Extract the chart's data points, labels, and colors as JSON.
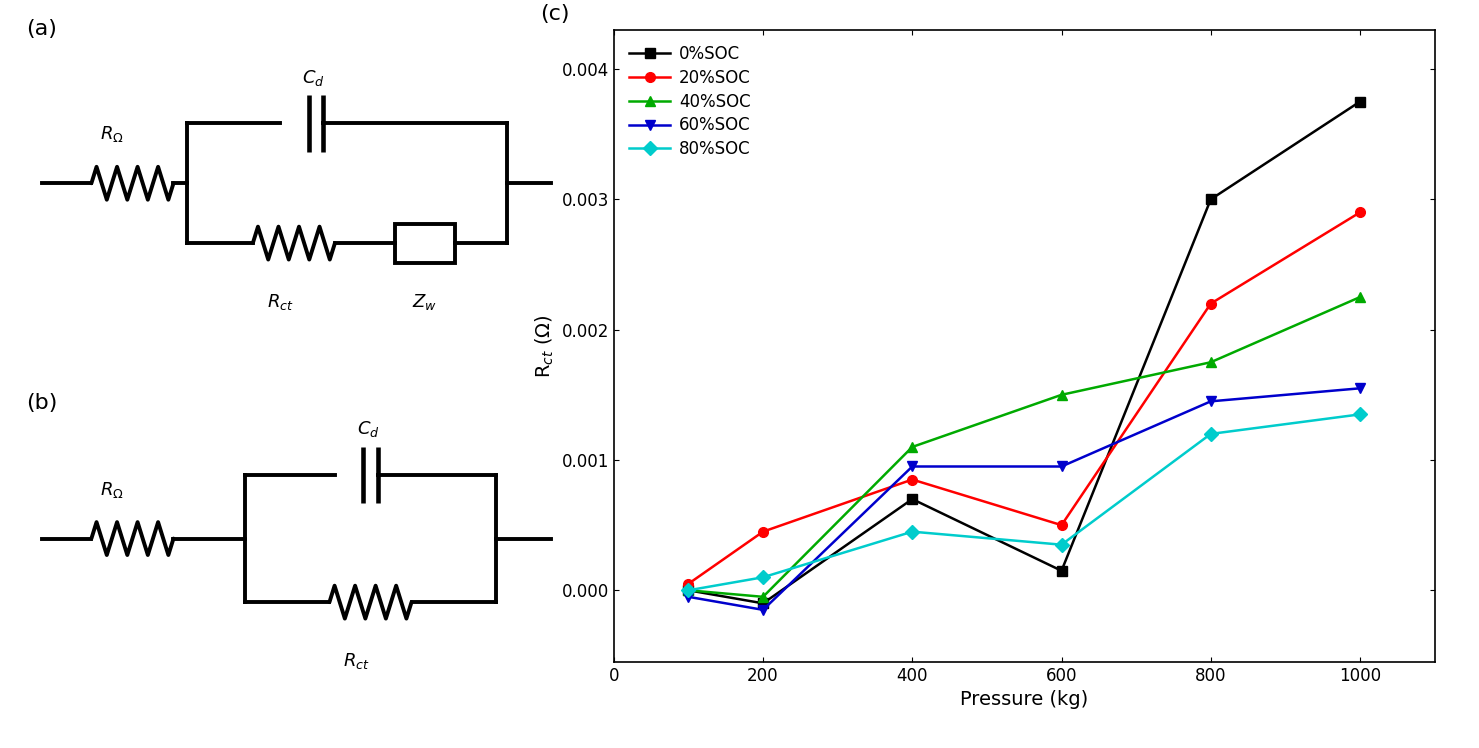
{
  "pressure": [
    100,
    200,
    400,
    600,
    800,
    1000
  ],
  "soc0": [
    0.0,
    -0.0001,
    0.0007,
    0.00015,
    0.003,
    0.00375
  ],
  "soc20": [
    5e-05,
    0.00045,
    0.00085,
    0.0005,
    0.0022,
    0.0029
  ],
  "soc40": [
    0.0,
    -5e-05,
    0.0011,
    0.0015,
    0.00175,
    0.00225
  ],
  "soc60": [
    -5e-05,
    -0.00015,
    0.00095,
    0.00095,
    0.00145,
    0.00155
  ],
  "soc80": [
    0.0,
    0.0001,
    0.00045,
    0.00035,
    0.0012,
    0.00135
  ],
  "colors": [
    "#000000",
    "#ff0000",
    "#00aa00",
    "#0000cc",
    "#00cccc"
  ],
  "markers": [
    "s",
    "o",
    "^",
    "v",
    "D"
  ],
  "labels": [
    "0%SOC",
    "20%SOC",
    "40%SOC",
    "60%SOC",
    "80%SOC"
  ],
  "xlabel": "Pressure (kg)",
  "ylabel": "R$_{ct}$ ($\\Omega$)",
  "xlim": [
    0,
    1100
  ],
  "ylim": [
    -0.00055,
    0.0043
  ],
  "yticks": [
    0.0,
    0.001,
    0.002,
    0.003,
    0.004
  ],
  "xticks": [
    0,
    200,
    400,
    600,
    800,
    1000
  ],
  "panel_c_label": "(c)",
  "panel_a_label": "(a)",
  "panel_b_label": "(b)"
}
